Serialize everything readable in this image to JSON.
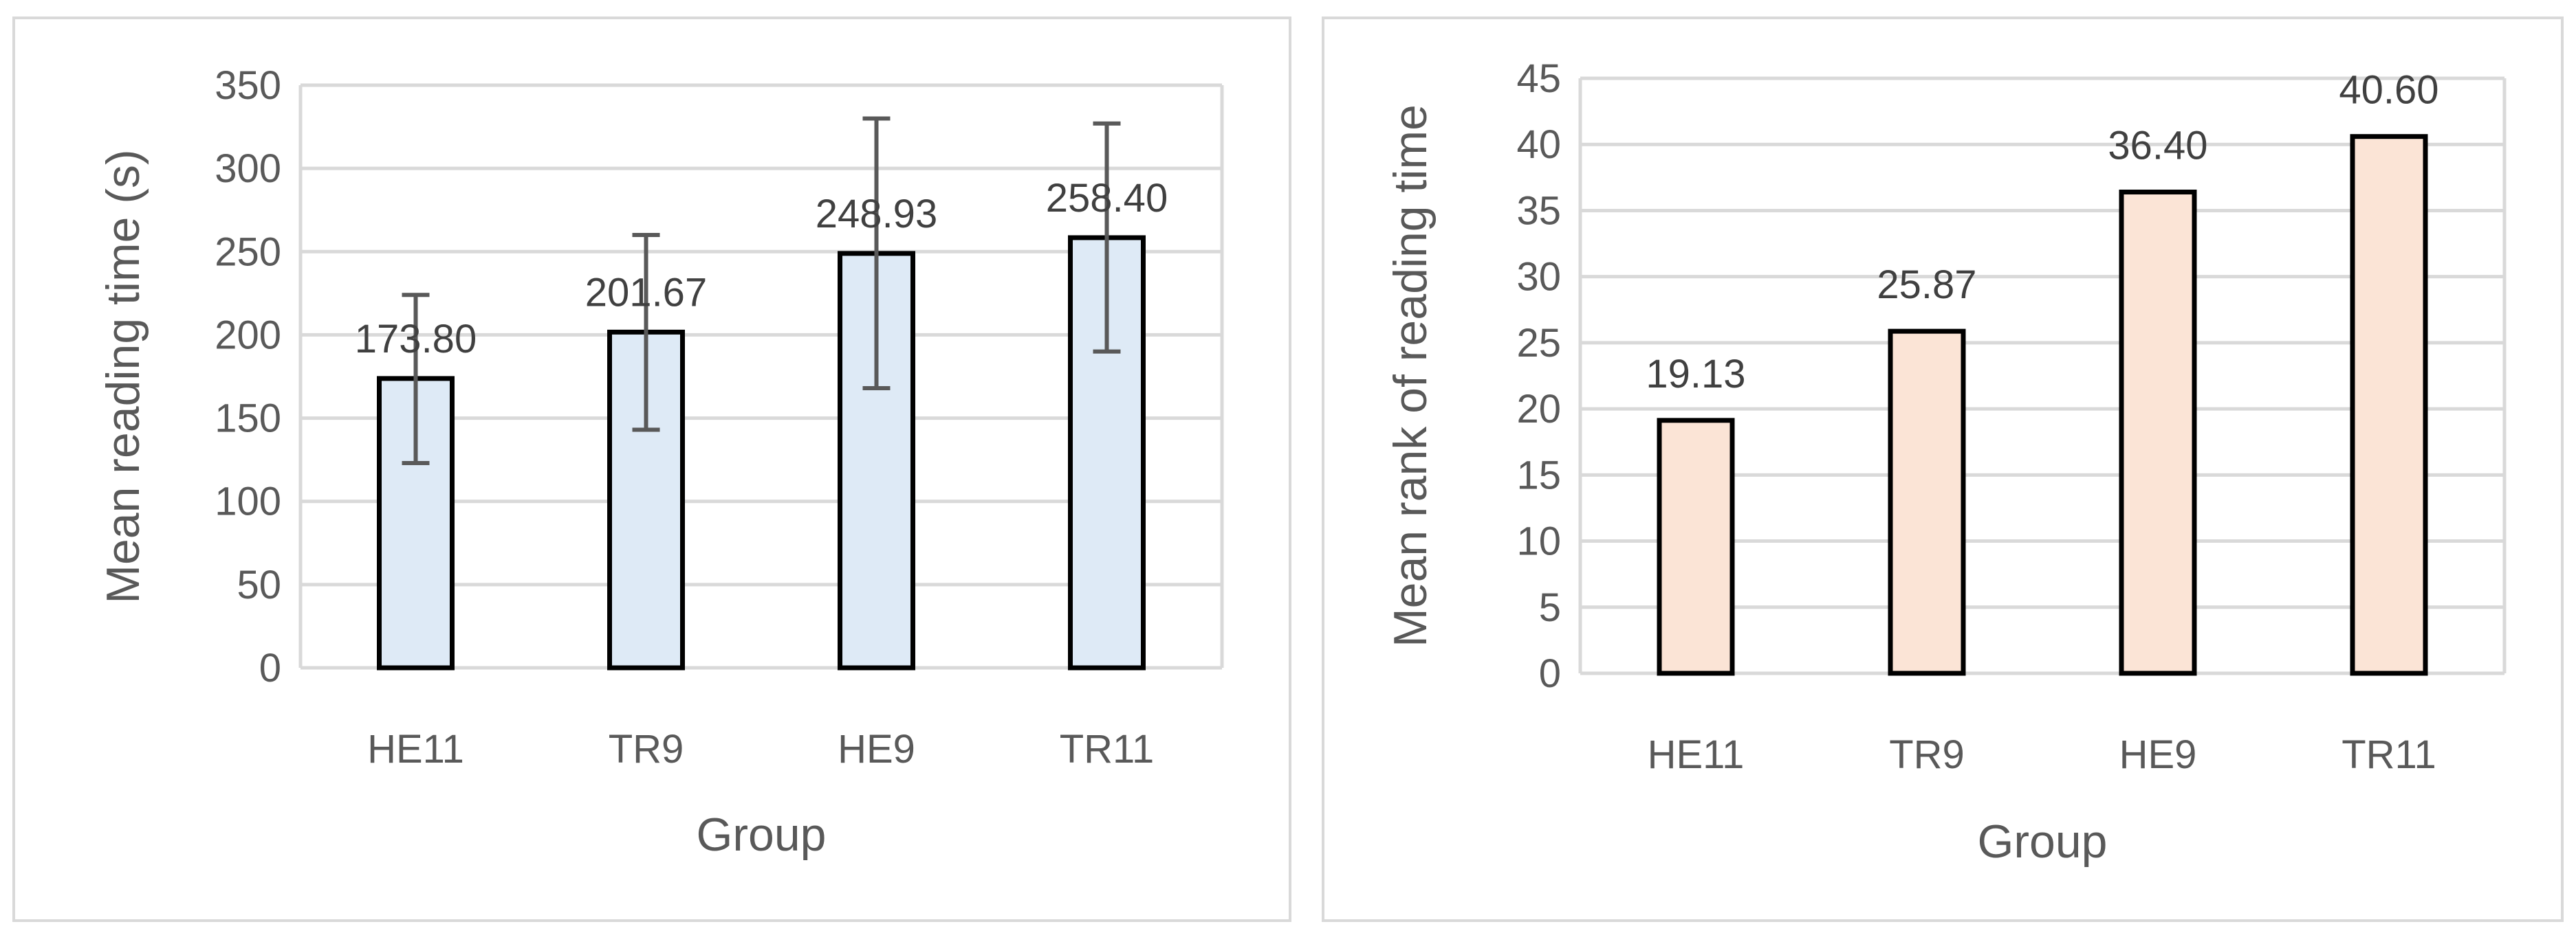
{
  "chart_data": [
    {
      "type": "bar",
      "title": "",
      "xlabel": "Group",
      "ylabel": "Mean reading time (s)",
      "categories": [
        "HE11",
        "TR9",
        "HE9",
        "TR11"
      ],
      "values": [
        173.8,
        201.67,
        248.93,
        258.4
      ],
      "data_labels": [
        "173.80",
        "201.67",
        "248.93",
        "258.40"
      ],
      "error_bars": [
        {
          "low": 123,
          "high": 224
        },
        {
          "low": 143,
          "high": 260
        },
        {
          "low": 168,
          "high": 330
        },
        {
          "low": 190,
          "high": 327
        }
      ],
      "ylim": [
        0,
        350
      ],
      "yticks": [
        0,
        50,
        100,
        150,
        200,
        250,
        300,
        350
      ],
      "ytick_labels": [
        "0",
        "50",
        "100",
        "150",
        "200",
        "250",
        "300",
        "350"
      ],
      "grid": true,
      "legend": "none",
      "bar_color": "#deeaf6"
    },
    {
      "type": "bar",
      "title": "",
      "xlabel": "Group",
      "ylabel": "Mean  rank of reading time",
      "categories": [
        "HE11",
        "TR9",
        "HE9",
        "TR11"
      ],
      "values": [
        19.13,
        25.87,
        36.4,
        40.6
      ],
      "data_labels": [
        "19.13",
        "25.87",
        "36.40",
        "40.60"
      ],
      "ylim": [
        0,
        45
      ],
      "yticks": [
        0,
        5,
        10,
        15,
        20,
        25,
        30,
        35,
        40,
        45
      ],
      "ytick_labels": [
        "0",
        "5",
        "10",
        "15",
        "20",
        "25",
        "30",
        "35",
        "40",
        "45"
      ],
      "grid": true,
      "legend": "none",
      "bar_color": "#fbe4d6"
    }
  ]
}
